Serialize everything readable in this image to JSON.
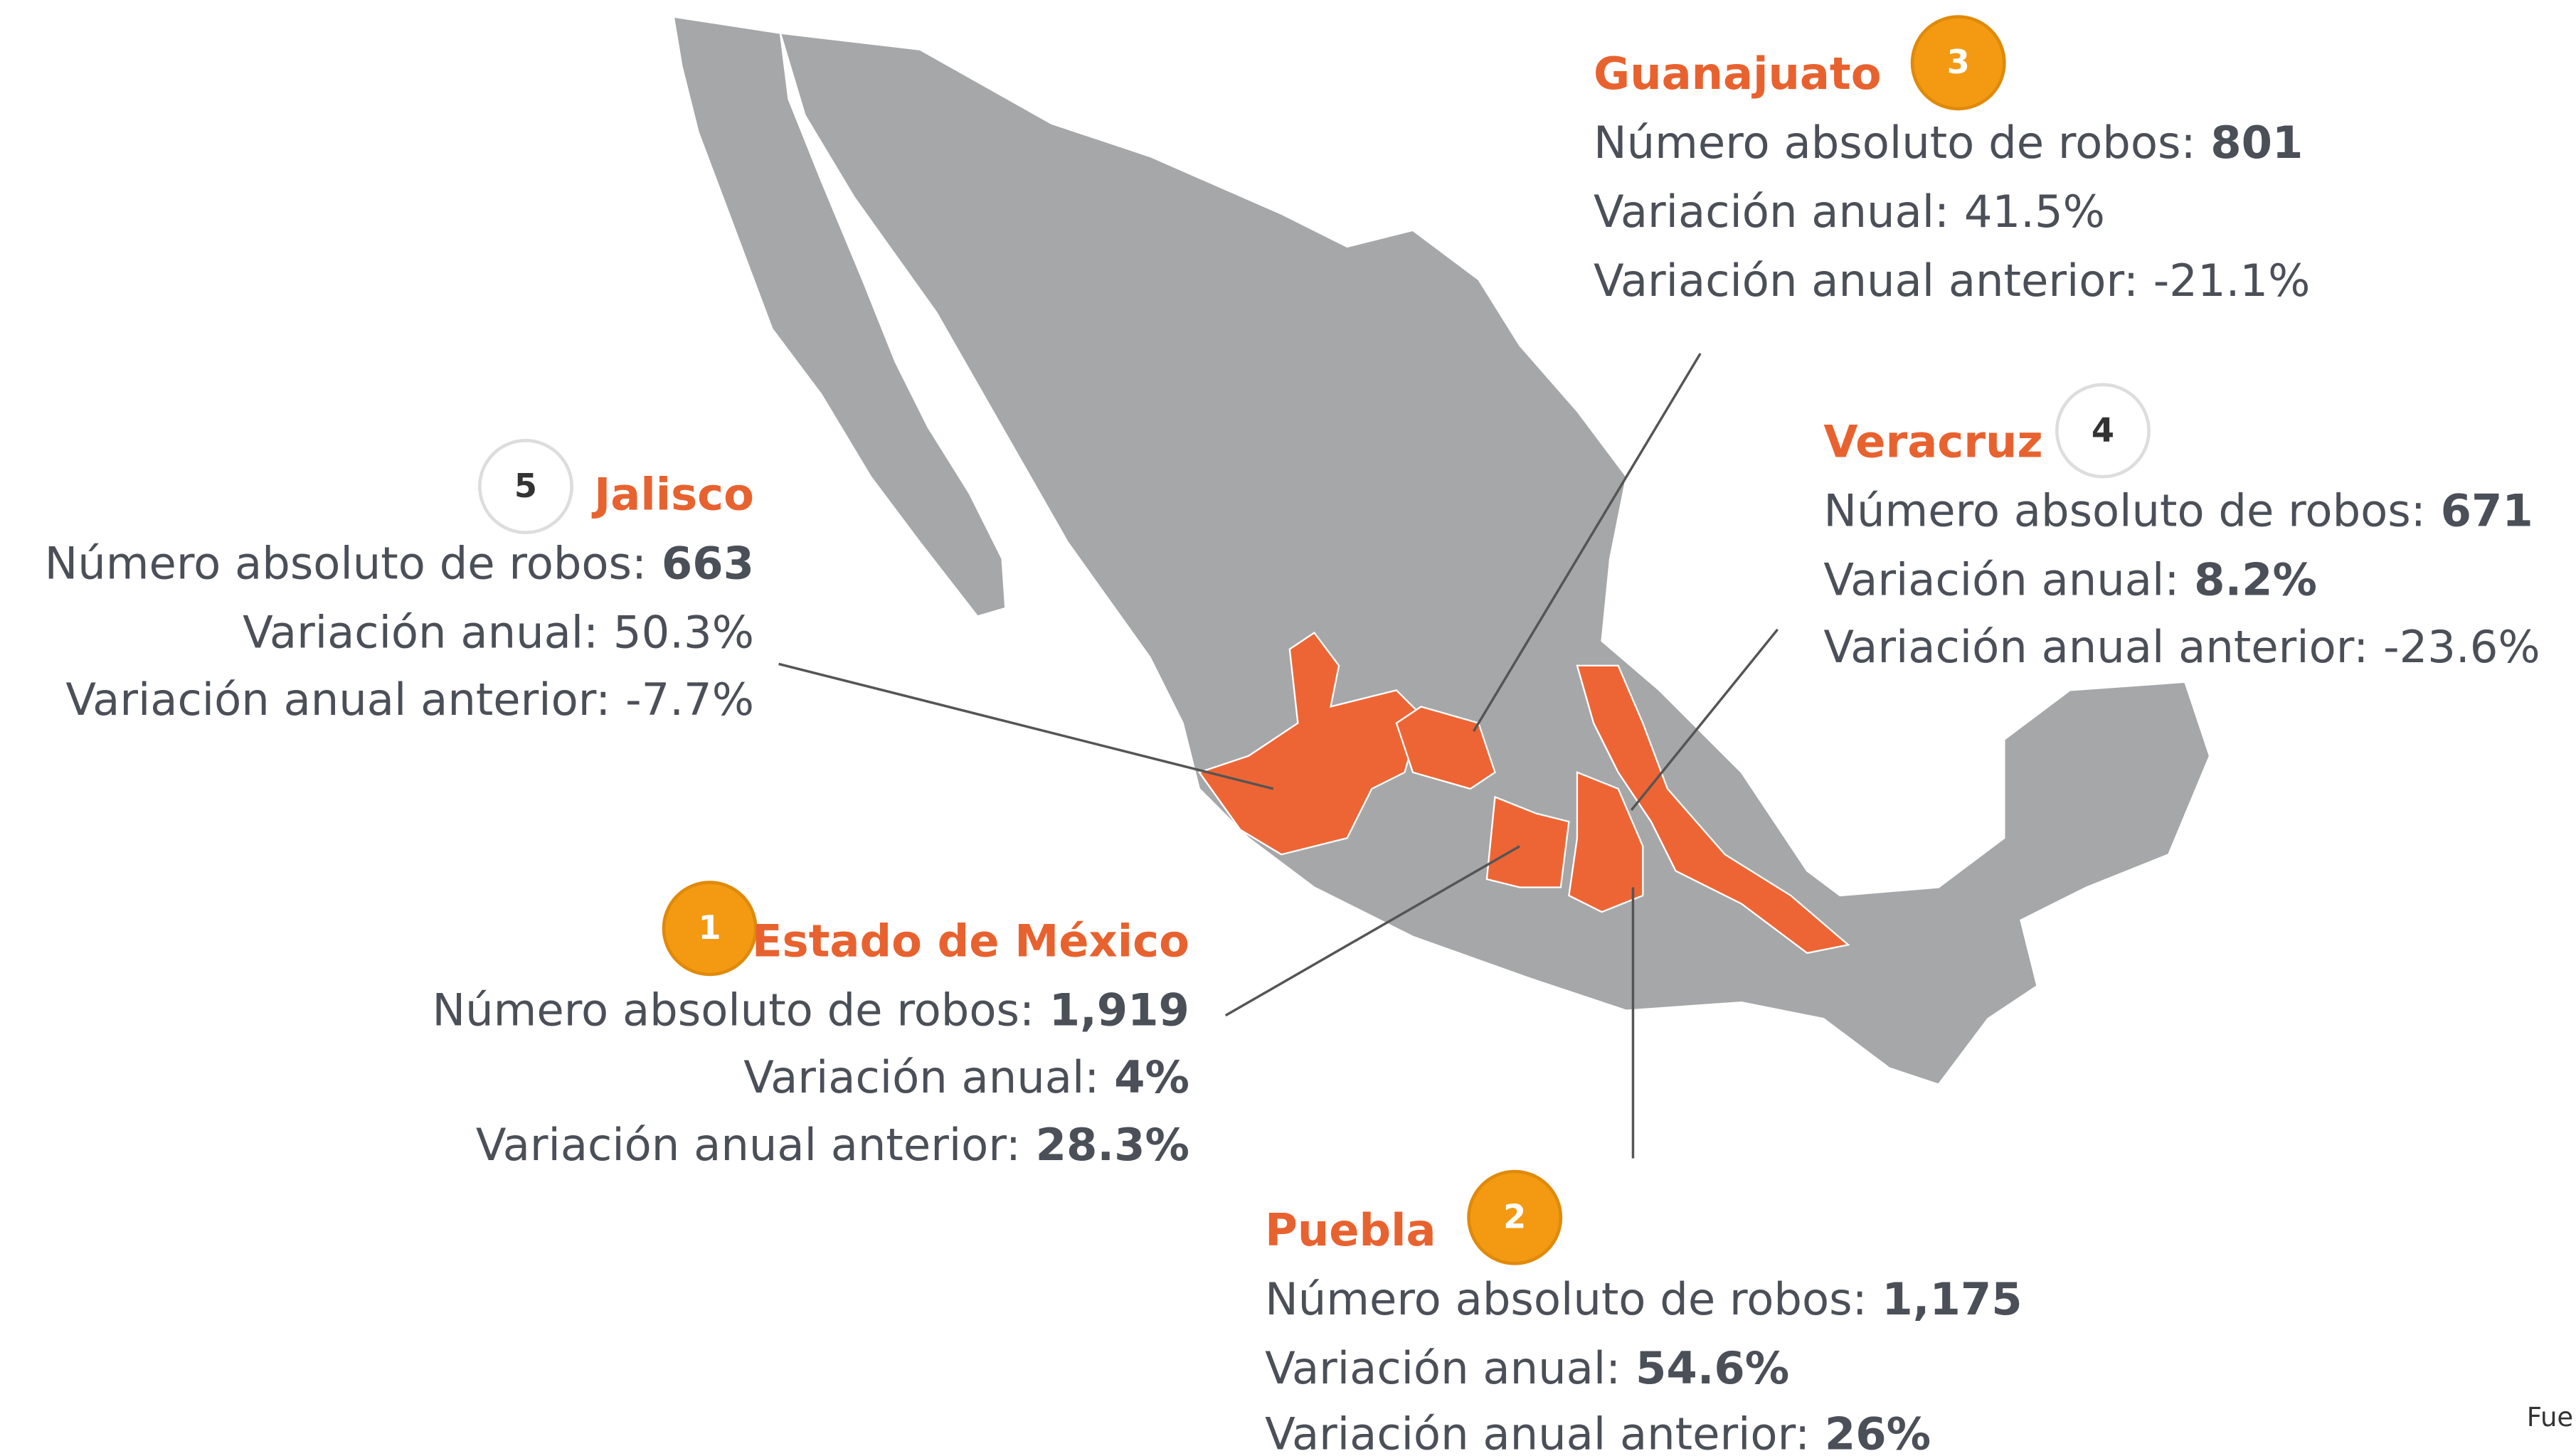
{
  "states": [
    {
      "rank": "3",
      "name": "Guanajuato",
      "rows": [
        {
          "label": "Número absoluto de robos:",
          "value": "801"
        },
        {
          "label": "Variación anual:",
          "value": "41.5%"
        },
        {
          "label": "Variación anual anterior:",
          "value": "-21.1%"
        }
      ]
    },
    {
      "rank": "4",
      "name": "Veracruz",
      "rows": [
        {
          "label": "Número absoluto de robos:",
          "value": "671"
        },
        {
          "label": "Variación anual:",
          "value": "8.2%"
        },
        {
          "label": "Variación anual anterior:",
          "value": "-23.6%"
        }
      ]
    },
    {
      "rank": "5",
      "name": "Jalisco",
      "rows": [
        {
          "label": "Número absoluto de robos:",
          "value": "663"
        },
        {
          "label": "Variación anual:",
          "value": "50.3%"
        },
        {
          "label": "Variación anual anterior:",
          "value": "-7.7%"
        }
      ]
    },
    {
      "rank": "1",
      "name": "Estado de México",
      "rows": [
        {
          "label": "Número absoluto de robos:",
          "value": "1,919"
        },
        {
          "label": "Variación anual:",
          "value": "4%"
        },
        {
          "label": "Variación anual anterior:",
          "value": "28.3%"
        }
      ]
    },
    {
      "rank": "2",
      "name": "Puebla",
      "rows": [
        {
          "label": "Número absoluto de robos:",
          "value": "1,175"
        },
        {
          "label": "Variación anual:",
          "value": "54.6%"
        },
        {
          "label": "Variación anual anterior:",
          "value": "26%"
        }
      ]
    }
  ],
  "footer": "Fue"
}
